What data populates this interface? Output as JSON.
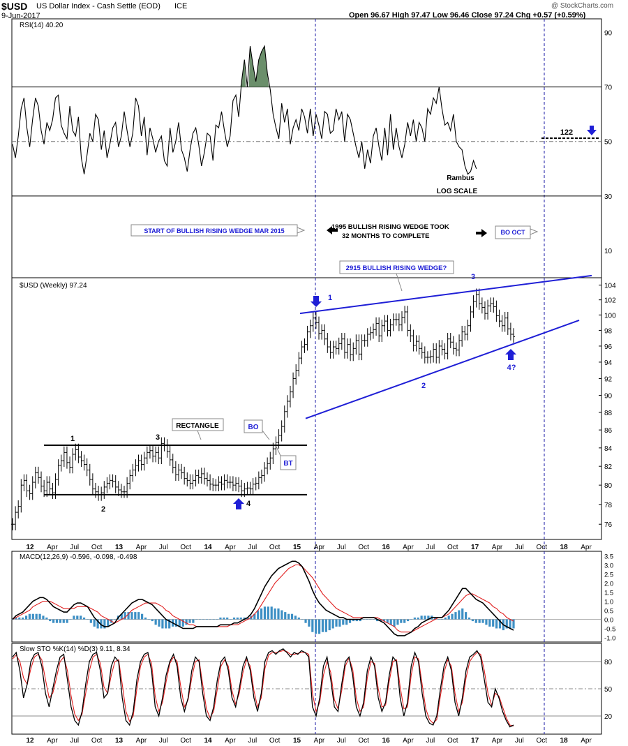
{
  "header": {
    "symbol": "$USD",
    "name": "US Dollar Index - Cash Settle (EOD)",
    "exchange": "ICE",
    "date": "9-Jun-2017",
    "quote": "Open 96.67  High 97.47  Low 96.46  Close 97.24  Chg +0.57 (+0.59%)",
    "watermark": "@ StockCharts.com"
  },
  "colors": {
    "rsi_fill": "#6b8f6b",
    "macd_hist": "#3d8fc4",
    "signal": "#e02020",
    "annot_blue": "#1f1fd6",
    "line": "#000000"
  },
  "x_axis": {
    "labels": [
      "12",
      "Apr",
      "Jul",
      "Oct",
      "13",
      "Apr",
      "Jul",
      "Oct",
      "14",
      "Apr",
      "Jul",
      "Oct",
      "15",
      "Apr",
      "Jul",
      "Oct",
      "16",
      "Apr",
      "Jul",
      "Oct",
      "17",
      "Apr",
      "Jul",
      "Oct",
      "18",
      "Apr"
    ],
    "bold": [
      "12",
      "13",
      "14",
      "15",
      "16",
      "17",
      "18"
    ]
  },
  "chart_data": [
    {
      "type": "line",
      "panel": "rsi",
      "legend": "RSI(14) 40.20",
      "y_ticks": [
        90,
        70,
        50,
        30,
        10
      ],
      "ylim": [
        0,
        95
      ],
      "x_start": "2012-01",
      "x_step": "1 week",
      "values": [
        49,
        44,
        52,
        62,
        66,
        55,
        48,
        58,
        66,
        63,
        54,
        49,
        57,
        54,
        58,
        66,
        67,
        56,
        53,
        51,
        63,
        54,
        52,
        59,
        44,
        38,
        45,
        53,
        50,
        60,
        58,
        47,
        54,
        44,
        49,
        55,
        57,
        48,
        52,
        61,
        54,
        48,
        53,
        66,
        63,
        52,
        59,
        45,
        55,
        51,
        46,
        50,
        52,
        43,
        41,
        55,
        46,
        50,
        57,
        47,
        44,
        39,
        47,
        53,
        55,
        49,
        41,
        46,
        53,
        52,
        43,
        56,
        55,
        61,
        54,
        48,
        52,
        65,
        67,
        59,
        72,
        80,
        70,
        85,
        78,
        72,
        80,
        83,
        85,
        75,
        69,
        60,
        55,
        51,
        64,
        57,
        62,
        49,
        55,
        58,
        54,
        62,
        59,
        53,
        62,
        52,
        60,
        56,
        51,
        61,
        60,
        53,
        54,
        62,
        58,
        61,
        50,
        60,
        58,
        53,
        48,
        44,
        50,
        40,
        47,
        42,
        52,
        55,
        48,
        43,
        55,
        45,
        60,
        47,
        55,
        48,
        44,
        49,
        57,
        52,
        58,
        50,
        57,
        55,
        50,
        62,
        60,
        66,
        64,
        70,
        62,
        56,
        57,
        54,
        60,
        50,
        48,
        47,
        41,
        38,
        39,
        43,
        40
      ],
      "annotations": [
        "Rambus",
        "LOG SCALE",
        "122",
        "START OF BULLISH RISING WEDGE MAR 2015",
        "1995 BULLISH RISING WEDGE TOOK",
        "32 MONTHS TO COMPLETE",
        "BO OCT"
      ]
    },
    {
      "type": "ohlc",
      "panel": "price",
      "legend": "$USD (Weekly) 97.24",
      "scale": "log",
      "y_ticks": [
        104,
        102,
        100,
        98,
        96,
        94,
        92,
        90,
        88,
        86,
        84,
        82,
        80,
        78,
        76
      ],
      "ylim": [
        74.5,
        105
      ],
      "x_start": "2012-01",
      "x_step": "1 week",
      "close": [
        76.0,
        77.2,
        77.8,
        80.0,
        80.5,
        79.4,
        79.1,
        80.3,
        81.3,
        80.8,
        79.9,
        79.4,
        80.3,
        79.6,
        79.2,
        80.6,
        82.1,
        82.6,
        83.5,
        82.4,
        81.9,
        83.3,
        83.8,
        83.0,
        82.6,
        82.2,
        81.6,
        80.6,
        79.6,
        79.3,
        79.0,
        79.2,
        79.8,
        80.2,
        80.5,
        80.4,
        79.8,
        79.5,
        79.3,
        79.3,
        80.2,
        81.0,
        81.6,
        82.1,
        82.6,
        82.2,
        82.9,
        83.5,
        83.7,
        83.1,
        83.5,
        82.9,
        84.5,
        84.3,
        83.6,
        82.7,
        81.9,
        81.1,
        81.6,
        81.3,
        80.7,
        80.5,
        80.2,
        80.5,
        81.0,
        80.8,
        81.2,
        80.7,
        80.5,
        80.1,
        80.0,
        80.0,
        80.3,
        80.1,
        80.5,
        80.3,
        80.3,
        80.0,
        80.2,
        79.9,
        79.4,
        79.6,
        79.7,
        79.6,
        80.1,
        80.2,
        80.8,
        81.0,
        81.8,
        82.3,
        82.9,
        83.9,
        84.6,
        85.4,
        86.4,
        88.1,
        89.3,
        90.4,
        92.0,
        93.0,
        94.5,
        95.9,
        96.2,
        97.8,
        98.6,
        99.6,
        99.0,
        97.6,
        98.0,
        96.9,
        95.9,
        95.2,
        95.9,
        95.7,
        96.3,
        96.9,
        95.2,
        96.2,
        94.9,
        95.7,
        96.7,
        95.0,
        96.7,
        96.7,
        97.5,
        97.7,
        98.1,
        98.9,
        97.3,
        98.6,
        99.2,
        98.0,
        98.7,
        99.4,
        99.4,
        98.7,
        99.7,
        100.4,
        98.0,
        97.3,
        96.1,
        96.6,
        95.7,
        95.2,
        94.6,
        94.6,
        94.7,
        95.6,
        94.6,
        96.0,
        95.6,
        95.1,
        96.9,
        96.5,
        95.7,
        95.5,
        96.7,
        97.8,
        97.5,
        98.6,
        100.4,
        101.8,
        102.7,
        101.5,
        101.0,
        100.2,
        101.2,
        101.5,
        101.1,
        99.9,
        99.2,
        98.6,
        99.6,
        98.2,
        97.5,
        97.2
      ],
      "labels": {
        "rectangle": "RECTANGLE",
        "bo": "BO",
        "bt": "BT",
        "wedge": "2915 BULLISH RISING WEDGE?",
        "pts": [
          "1",
          "2",
          "3",
          "4",
          "1",
          "2",
          "3",
          "4?"
        ]
      }
    },
    {
      "type": "line",
      "panel": "macd",
      "legend": "MACD(12,26,9) -0.596, -0.098, -0.498",
      "series_names": [
        "MACD",
        "signal",
        "histogram"
      ],
      "y_ticks": [
        3.5,
        3.0,
        2.5,
        2.0,
        1.5,
        1.0,
        0.5,
        0.0,
        -0.5,
        -1.0
      ],
      "ylim": [
        -1.25,
        3.75
      ],
      "x_start": "2012-01",
      "x_step": "1 week",
      "macd": [
        0.0,
        0.2,
        0.3,
        0.4,
        0.6,
        0.8,
        1.0,
        1.1,
        1.2,
        1.2,
        1.1,
        0.9,
        0.7,
        0.6,
        0.5,
        0.4,
        0.4,
        0.6,
        0.8,
        0.9,
        0.9,
        0.8,
        0.7,
        0.4,
        0.1,
        -0.1,
        -0.3,
        -0.4,
        -0.4,
        -0.3,
        -0.2,
        0.1,
        0.3,
        0.5,
        0.7,
        0.9,
        1.0,
        1.1,
        1.1,
        1.0,
        0.9,
        0.8,
        0.6,
        0.4,
        0.2,
        0.0,
        -0.1,
        -0.2,
        -0.3,
        -0.4,
        -0.5,
        -0.5,
        -0.5,
        -0.5,
        -0.4,
        -0.4,
        -0.4,
        -0.4,
        -0.4,
        -0.4,
        -0.4,
        -0.3,
        -0.3,
        -0.3,
        -0.3,
        -0.2,
        -0.2,
        -0.1,
        0.0,
        0.1,
        0.3,
        0.6,
        1.0,
        1.4,
        1.8,
        2.1,
        2.4,
        2.6,
        2.8,
        2.9,
        3.0,
        3.1,
        3.2,
        3.2,
        3.1,
        2.9,
        2.5,
        2.1,
        1.6,
        1.2,
        0.9,
        0.7,
        0.5,
        0.4,
        0.3,
        0.2,
        0.1,
        0.1,
        0.0,
        0.0,
        0.0,
        0.0,
        0.0,
        0.1,
        0.1,
        0.1,
        0.1,
        0.0,
        -0.1,
        -0.2,
        -0.4,
        -0.6,
        -0.8,
        -0.9,
        -0.9,
        -0.9,
        -0.8,
        -0.7,
        -0.5,
        -0.4,
        -0.2,
        -0.1,
        0.0,
        0.1,
        0.1,
        0.1,
        0.1,
        0.3,
        0.5,
        0.8,
        1.1,
        1.4,
        1.7,
        1.7,
        1.5,
        1.3,
        1.1,
        1.0,
        0.9,
        0.7,
        0.5,
        0.3,
        0.1,
        -0.1,
        -0.3,
        -0.4,
        -0.5,
        -0.6
      ],
      "signal": [
        0.0,
        0.1,
        0.2,
        0.3,
        0.4,
        0.5,
        0.7,
        0.8,
        0.9,
        1.0,
        1.0,
        1.0,
        0.9,
        0.8,
        0.7,
        0.6,
        0.6,
        0.6,
        0.6,
        0.7,
        0.7,
        0.7,
        0.7,
        0.6,
        0.5,
        0.4,
        0.2,
        0.1,
        0.0,
        -0.1,
        -0.2,
        -0.1,
        0.0,
        0.1,
        0.3,
        0.5,
        0.6,
        0.7,
        0.8,
        0.9,
        0.9,
        0.9,
        0.9,
        0.8,
        0.7,
        0.5,
        0.4,
        0.2,
        0.1,
        0.0,
        -0.1,
        -0.2,
        -0.3,
        -0.3,
        -0.4,
        -0.4,
        -0.4,
        -0.4,
        -0.4,
        -0.4,
        -0.4,
        -0.4,
        -0.4,
        -0.4,
        -0.3,
        -0.3,
        -0.3,
        -0.2,
        -0.1,
        0.0,
        0.1,
        0.3,
        0.5,
        0.8,
        1.1,
        1.4,
        1.7,
        2.0,
        2.2,
        2.4,
        2.6,
        2.8,
        2.9,
        3.0,
        3.0,
        2.9,
        2.7,
        2.5,
        2.3,
        2.0,
        1.7,
        1.4,
        1.2,
        1.0,
        0.8,
        0.6,
        0.5,
        0.4,
        0.3,
        0.2,
        0.1,
        0.1,
        0.1,
        0.1,
        0.1,
        0.1,
        0.1,
        0.1,
        0.0,
        -0.1,
        -0.2,
        -0.3,
        -0.4,
        -0.6,
        -0.7,
        -0.7,
        -0.7,
        -0.7,
        -0.6,
        -0.5,
        -0.4,
        -0.3,
        -0.2,
        -0.1,
        0.0,
        0.1,
        0.1,
        0.2,
        0.3,
        0.5,
        0.7,
        0.9,
        1.1,
        1.3,
        1.4,
        1.4,
        1.3,
        1.2,
        1.1,
        1.0,
        0.9,
        0.7,
        0.6,
        0.4,
        0.3,
        0.1,
        0.0,
        -0.1
      ]
    },
    {
      "type": "line",
      "panel": "stoch",
      "legend": "Slow STO %K(14) %D(3) 9.11, 8.34",
      "series_names": [
        "%K",
        "%D"
      ],
      "y_ticks": [
        80,
        50,
        20
      ],
      "ylim": [
        0,
        100
      ],
      "x_start": "2012-01",
      "x_step": "1 week",
      "k": [
        85,
        90,
        70,
        40,
        55,
        80,
        88,
        90,
        75,
        45,
        30,
        50,
        70,
        85,
        88,
        60,
        30,
        15,
        10,
        25,
        55,
        80,
        88,
        90,
        70,
        40,
        45,
        75,
        85,
        80,
        40,
        15,
        10,
        25,
        60,
        80,
        88,
        90,
        70,
        30,
        20,
        40,
        65,
        80,
        88,
        75,
        40,
        25,
        40,
        70,
        85,
        80,
        45,
        20,
        15,
        30,
        60,
        80,
        85,
        70,
        40,
        30,
        50,
        75,
        85,
        70,
        40,
        25,
        45,
        80,
        90,
        92,
        88,
        92,
        94,
        90,
        85,
        90,
        88,
        92,
        90,
        85,
        30,
        20,
        40,
        75,
        85,
        60,
        30,
        25,
        55,
        80,
        85,
        65,
        30,
        20,
        35,
        70,
        85,
        75,
        40,
        25,
        35,
        65,
        85,
        80,
        40,
        20,
        35,
        75,
        90,
        80,
        45,
        20,
        12,
        10,
        20,
        50,
        75,
        85,
        70,
        35,
        20,
        40,
        70,
        85,
        88,
        92,
        85,
        60,
        35,
        30,
        50,
        40,
        25,
        15,
        8,
        10
      ],
      "d": [
        83,
        87,
        80,
        62,
        55,
        72,
        85,
        88,
        82,
        60,
        40,
        45,
        62,
        80,
        85,
        70,
        42,
        22,
        15,
        22,
        45,
        70,
        85,
        88,
        78,
        52,
        45,
        65,
        80,
        82,
        55,
        25,
        14,
        20,
        50,
        75,
        85,
        88,
        78,
        42,
        25,
        35,
        58,
        78,
        85,
        80,
        52,
        30,
        38,
        62,
        80,
        82,
        55,
        28,
        18,
        25,
        50,
        75,
        82,
        75,
        48,
        33,
        45,
        68,
        82,
        75,
        48,
        30,
        40,
        72,
        87,
        90,
        90,
        91,
        92,
        91,
        88,
        88,
        89,
        90,
        90,
        88,
        45,
        25,
        35,
        65,
        80,
        68,
        38,
        28,
        48,
        75,
        84,
        72,
        40,
        25,
        30,
        62,
        80,
        78,
        50,
        30,
        32,
        58,
        80,
        82,
        52,
        28,
        30,
        65,
        85,
        83,
        55,
        28,
        16,
        12,
        16,
        42,
        68,
        82,
        75,
        45,
        25,
        35,
        62,
        80,
        86,
        90,
        88,
        70,
        45,
        32,
        45,
        42,
        30,
        18,
        10,
        9
      ]
    }
  ]
}
